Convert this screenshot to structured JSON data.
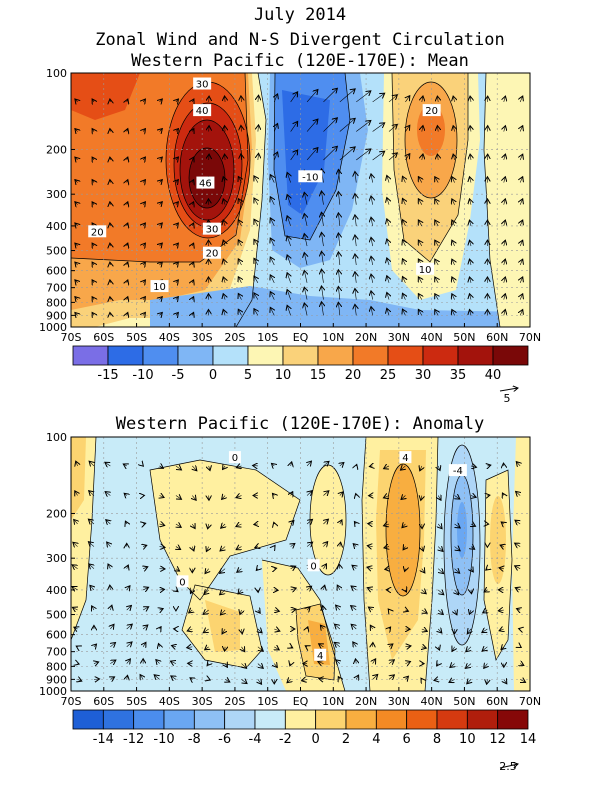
{
  "page": {
    "title_line1": "July 2014",
    "title_line2": "Zonal Wind and N-S Divergent Circulation",
    "panel1_title": "Western Pacific (120E-170E): Mean",
    "panel2_title": "Western Pacific (120E-170E): Anomaly"
  },
  "chart_data": [
    {
      "type": "heatmap",
      "title": "Western Pacific (120E-170E): Mean",
      "x_tick_labels": [
        "70S",
        "60S",
        "50S",
        "40S",
        "30S",
        "20S",
        "10S",
        "EQ",
        "10N",
        "20N",
        "30N",
        "40N",
        "50N",
        "60N",
        "70N"
      ],
      "x_range": [
        -70,
        70
      ],
      "y_tick_labels": [
        "100",
        "200",
        "300",
        "400",
        "500",
        "600",
        "700",
        "800",
        "900",
        "1000"
      ],
      "y_range": [
        1000,
        100
      ],
      "y_scale": "log",
      "grid": true,
      "contour_labels": [
        {
          "text": "30",
          "lat": -30,
          "p": 110
        },
        {
          "text": "40",
          "lat": -30,
          "p": 140
        },
        {
          "text": "46",
          "lat": -29,
          "p": 270
        },
        {
          "text": "30",
          "lat": -27,
          "p": 410
        },
        {
          "text": "20",
          "lat": -27,
          "p": 510
        },
        {
          "text": "20",
          "lat": -62,
          "p": 420
        },
        {
          "text": "10",
          "lat": -43,
          "p": 690
        },
        {
          "text": "-10",
          "lat": 3,
          "p": 255
        },
        {
          "text": "20",
          "lat": 40,
          "p": 140
        },
        {
          "text": "10",
          "lat": 38,
          "p": 590
        }
      ],
      "colorbar": {
        "labels": [
          "-15",
          "-10",
          "-5",
          "0",
          "5",
          "10",
          "15",
          "20",
          "25",
          "30",
          "35",
          "40"
        ],
        "colors": [
          "#7a6ee6",
          "#2d6ce6",
          "#4f8ef0",
          "#7fb6f5",
          "#b4e1fa",
          "#fdf6b4",
          "#fad27a",
          "#f8a74a",
          "#f27a28",
          "#e54e16",
          "#cc2a10",
          "#a3130c",
          "#7a0808"
        ]
      },
      "reference_vector": "5"
    },
    {
      "type": "heatmap",
      "title": "Western Pacific (120E-170E): Anomaly",
      "x_tick_labels": [
        "70S",
        "60S",
        "50S",
        "40S",
        "30S",
        "20S",
        "10S",
        "EQ",
        "10N",
        "20N",
        "30N",
        "40N",
        "50N",
        "60N",
        "70N"
      ],
      "x_range": [
        -70,
        70
      ],
      "y_tick_labels": [
        "100",
        "200",
        "300",
        "400",
        "500",
        "600",
        "700",
        "800",
        "900",
        "1000"
      ],
      "y_range": [
        1000,
        100
      ],
      "y_scale": "log",
      "grid": true,
      "contour_labels": [
        {
          "text": "0",
          "lat": -20,
          "p": 120
        },
        {
          "text": "0",
          "lat": -36,
          "p": 370
        },
        {
          "text": "0",
          "lat": 4,
          "p": 320
        },
        {
          "text": "4",
          "lat": 32,
          "p": 120
        },
        {
          "text": "-4",
          "lat": 48,
          "p": 135
        },
        {
          "text": "4",
          "lat": 6,
          "p": 720
        }
      ],
      "colorbar": {
        "labels": [
          "-14",
          "-12",
          "-10",
          "-8",
          "-6",
          "-4",
          "-2",
          "0",
          "2",
          "4",
          "6",
          "8",
          "10",
          "12",
          "14"
        ],
        "colors": [
          "#1e5fd6",
          "#2f72e0",
          "#4b8ded",
          "#6aa7f2",
          "#8ec0f5",
          "#aed6f7",
          "#c8ebf8",
          "#fff0a0",
          "#fcd470",
          "#f8ae40",
          "#f38a24",
          "#ea6014",
          "#d53a10",
          "#b01e0c",
          "#860808"
        ]
      },
      "reference_vector": "2.5"
    }
  ]
}
